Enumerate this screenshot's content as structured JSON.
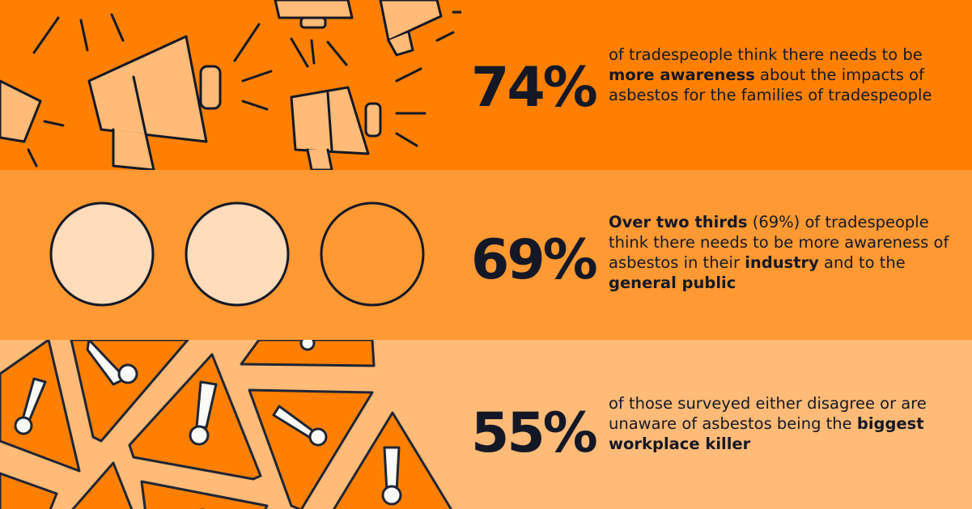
{
  "colors": {
    "band_1": "#ff8000",
    "band_2": "#ff9933",
    "band_3": "#ffbb77",
    "text": "#141826",
    "icon_fill_light": "#ffbb77",
    "circle_fill": "#ffdcbb"
  },
  "stats": [
    {
      "percent": "74%",
      "icon": "megaphone-icon",
      "parts": [
        "of tradespeople think there needs to be ",
        "more awareness",
        " about the impacts of asbestos for the families of tradespeople"
      ]
    },
    {
      "percent": "69%",
      "icon": "circle-icon",
      "circles_filled": 2,
      "circles_total": 3,
      "parts": [
        "Over two thirds",
        " (69%) of tradespeople think there needs to be more awareness of asbestos in their ",
        "industry",
        " and to the ",
        "general public"
      ]
    },
    {
      "percent": "55%",
      "icon": "warning-triangle-icon",
      "parts": [
        "of those surveyed either disagree or are unaware of asbestos being the ",
        "biggest workplace killer"
      ]
    }
  ]
}
